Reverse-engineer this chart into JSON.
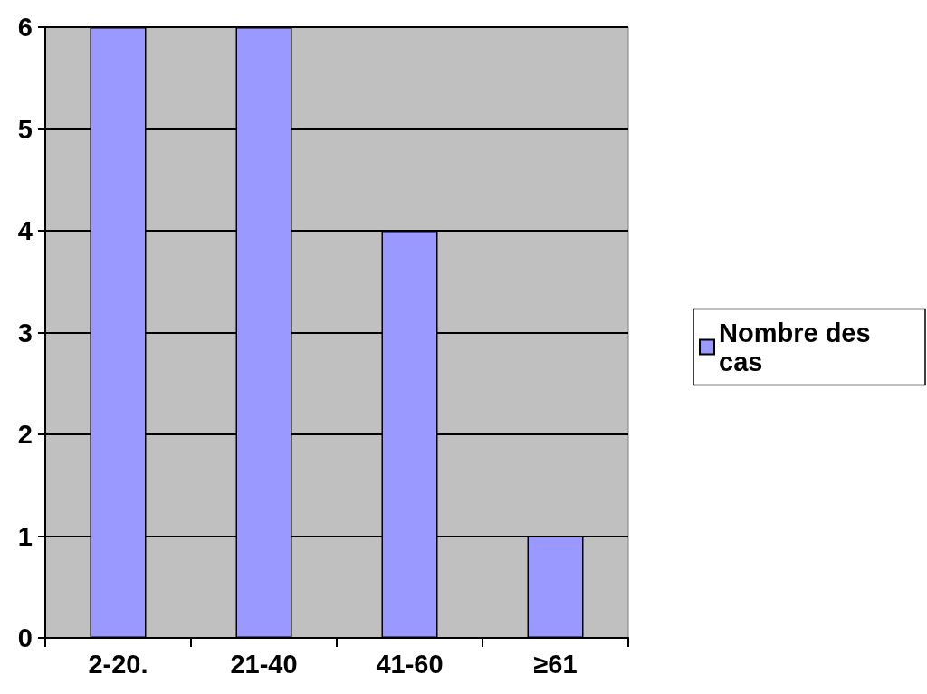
{
  "chart_data": {
    "type": "bar",
    "categories": [
      "2-20.",
      "21-40",
      "41-60",
      "≥61"
    ],
    "series": [
      {
        "name": "Nombre des cas",
        "color": "#9999ff",
        "values": [
          6,
          6,
          4,
          1
        ]
      }
    ],
    "ylim": [
      0,
      6
    ],
    "yticks": [
      0,
      1,
      2,
      3,
      4,
      5,
      6
    ],
    "grid": "y",
    "legend": "right"
  }
}
